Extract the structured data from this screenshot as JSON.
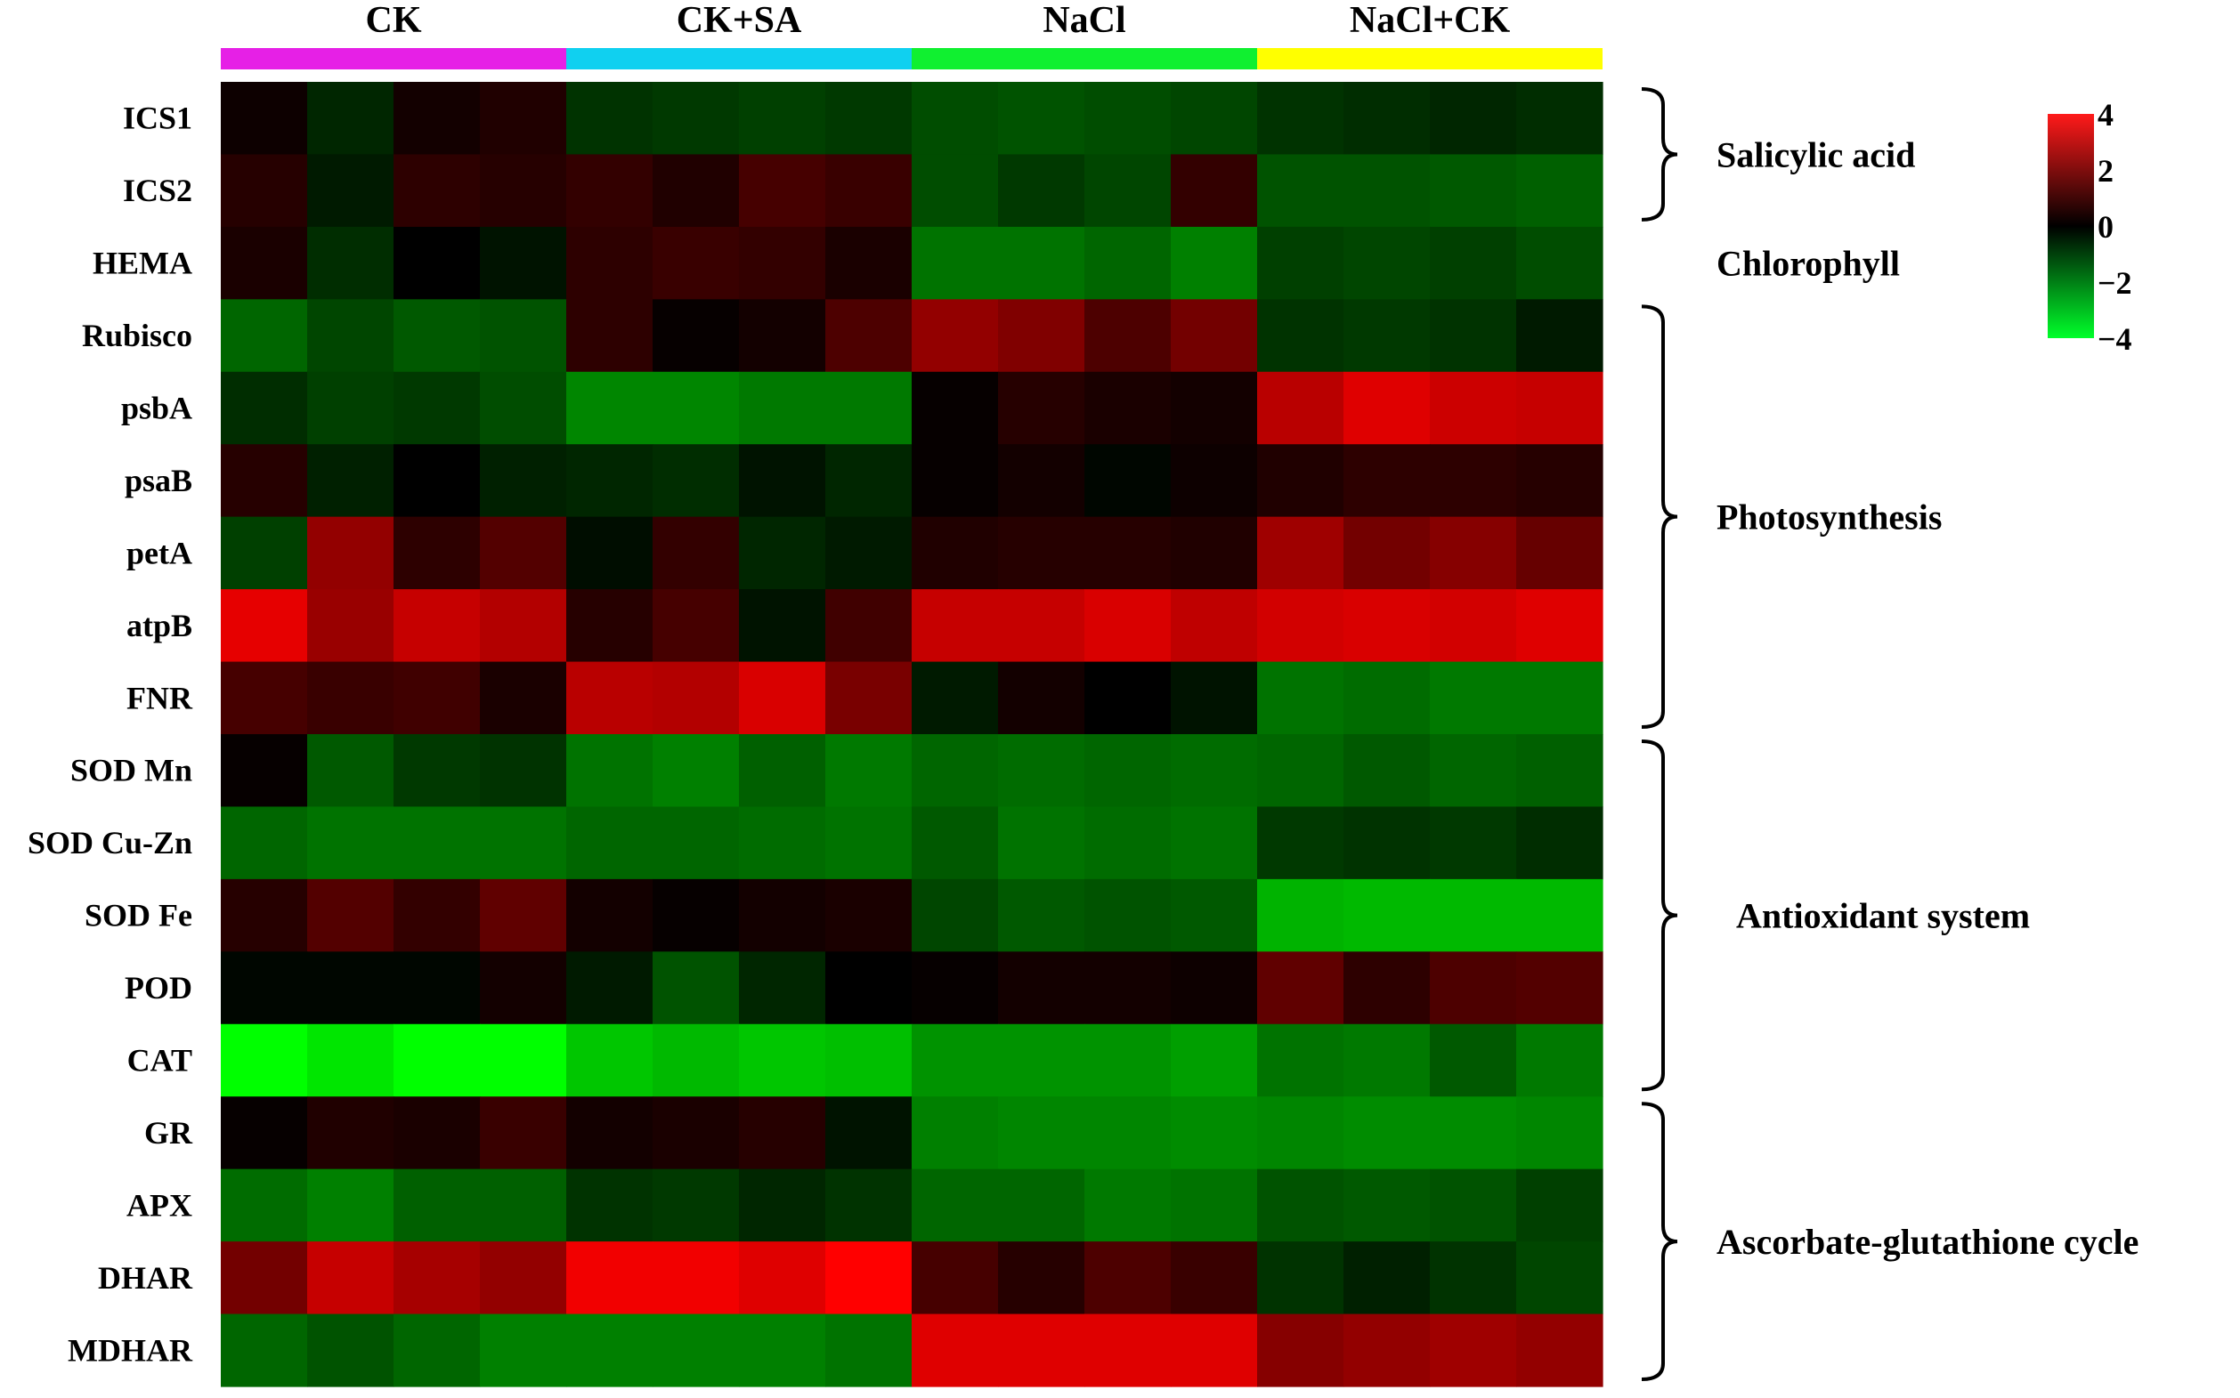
{
  "chart_data": {
    "type": "heatmap",
    "title": "",
    "xlabel": "",
    "ylabel": "",
    "groups": [
      {
        "name": "CK",
        "color": "#e620e6"
      },
      {
        "name": "CK+SA",
        "color": "#10d0f0"
      },
      {
        "name": "NaCl",
        "color": "#10f030"
      },
      {
        "name": "NaCl+CK",
        "color": "#ffff00"
      }
    ],
    "columns_per_group": 4,
    "rows": [
      "ICS1",
      "ICS2",
      "HEMA",
      "Rubisco",
      "psbA",
      "psaB",
      "petA",
      "atpB",
      "FNR",
      "SOD Mn",
      "SOD Cu-Zn",
      "SOD Fe",
      "POD",
      "CAT",
      "GR",
      "APX",
      "DHAR",
      "MDHAR"
    ],
    "values": [
      [
        0.2,
        -0.6,
        0.3,
        0.5,
        -0.8,
        -0.9,
        -1.0,
        -0.9,
        -1.2,
        -1.3,
        -1.2,
        -1.1,
        -0.8,
        -0.7,
        -0.6,
        -0.7
      ],
      [
        0.6,
        -0.4,
        0.7,
        0.6,
        0.8,
        0.5,
        1.1,
        0.9,
        -1.2,
        -0.9,
        -1.1,
        0.8,
        -1.3,
        -1.3,
        -1.4,
        -1.5
      ],
      [
        0.4,
        -0.7,
        0.0,
        -0.3,
        0.7,
        0.9,
        0.8,
        0.4,
        -1.8,
        -1.8,
        -1.6,
        -2.0,
        -1.0,
        -1.1,
        -1.0,
        -1.2
      ],
      [
        -1.6,
        -1.1,
        -1.4,
        -1.3,
        0.7,
        0.1,
        0.3,
        1.2,
        2.3,
        2.0,
        1.2,
        1.8,
        -0.8,
        -0.9,
        -0.8,
        -0.4
      ],
      [
        -0.7,
        -1.0,
        -0.9,
        -1.2,
        -2.1,
        -2.1,
        -1.9,
        -1.9,
        0.1,
        0.6,
        0.4,
        0.3,
        2.9,
        3.5,
        3.2,
        3.1
      ],
      [
        0.6,
        -0.5,
        0.0,
        -0.5,
        -0.6,
        -0.7,
        -0.3,
        -0.6,
        0.1,
        0.3,
        -0.1,
        0.2,
        0.5,
        0.7,
        0.7,
        0.6
      ],
      [
        -1.0,
        2.3,
        0.7,
        1.3,
        -0.2,
        0.8,
        -0.6,
        -0.4,
        0.5,
        0.6,
        0.6,
        0.5,
        2.5,
        1.8,
        2.1,
        1.6
      ],
      [
        3.6,
        2.4,
        3.1,
        2.8,
        0.6,
        1.1,
        -0.3,
        1.0,
        3.1,
        3.1,
        3.4,
        3.0,
        3.3,
        3.4,
        3.3,
        3.5
      ],
      [
        1.1,
        0.9,
        1.0,
        0.4,
        2.9,
        2.8,
        3.4,
        1.9,
        -0.4,
        0.3,
        0.0,
        -0.3,
        -1.8,
        -1.7,
        -1.9,
        -1.9
      ],
      [
        0.1,
        -1.4,
        -0.9,
        -0.8,
        -1.8,
        -2.0,
        -1.5,
        -1.9,
        -1.6,
        -1.7,
        -1.6,
        -1.7,
        -1.6,
        -1.4,
        -1.6,
        -1.5
      ],
      [
        -1.6,
        -1.8,
        -1.8,
        -1.8,
        -1.6,
        -1.6,
        -1.7,
        -1.8,
        -1.4,
        -1.8,
        -1.7,
        -1.8,
        -0.9,
        -0.8,
        -0.9,
        -0.7
      ],
      [
        0.6,
        1.3,
        0.8,
        1.5,
        0.3,
        0.1,
        0.3,
        0.4,
        -1.1,
        -1.4,
        -1.3,
        -1.4,
        -2.8,
        -2.9,
        -2.9,
        -2.9
      ],
      [
        -0.1,
        -0.1,
        -0.1,
        0.3,
        -0.4,
        -1.3,
        -0.6,
        0.0,
        0.1,
        0.3,
        0.3,
        0.2,
        1.5,
        0.7,
        1.2,
        1.3
      ],
      [
        -4.0,
        -3.6,
        -4.2,
        -4.1,
        -3.1,
        -2.9,
        -3.1,
        -3.0,
        -2.3,
        -2.3,
        -2.3,
        -2.5,
        -1.8,
        -1.9,
        -1.4,
        -1.9
      ],
      [
        0.1,
        0.5,
        0.4,
        0.9,
        0.3,
        0.4,
        0.6,
        -0.3,
        -2.0,
        -2.1,
        -2.1,
        -2.2,
        -2.1,
        -2.2,
        -2.2,
        -2.1
      ],
      [
        -1.7,
        -2.0,
        -1.5,
        -1.5,
        -0.8,
        -0.9,
        -0.6,
        -0.8,
        -1.6,
        -1.6,
        -1.9,
        -1.8,
        -1.3,
        -1.4,
        -1.3,
        -1.0
      ],
      [
        1.8,
        3.1,
        2.6,
        2.3,
        3.8,
        3.8,
        3.5,
        4.0,
        1.1,
        0.6,
        1.2,
        0.9,
        -0.8,
        -0.5,
        -0.8,
        -1.1
      ],
      [
        -1.6,
        -1.3,
        -1.6,
        -2.0,
        -2.0,
        -2.0,
        -2.0,
        -1.8,
        3.5,
        3.5,
        3.5,
        3.5,
        2.1,
        2.3,
        2.5,
        2.3
      ]
    ],
    "color_scale": {
      "min": -4,
      "max": 4,
      "low_color": "#00ff00",
      "mid_color": "#000000",
      "high_color": "#ff0000"
    },
    "colorbar_ticks": [
      "4",
      "2",
      "0",
      "−2",
      "−4"
    ],
    "categories": [
      {
        "label": "Salicylic acid",
        "rows": [
          0,
          1
        ],
        "bracket": true
      },
      {
        "label": "Chlorophyll",
        "rows": [
          2,
          2
        ],
        "bracket": false
      },
      {
        "label": "Photosynthesis",
        "rows": [
          3,
          8
        ],
        "bracket": true
      },
      {
        "label": "Antioxidant system",
        "rows": [
          9,
          13
        ],
        "bracket": true
      },
      {
        "label": "Ascorbate-glutathione cycle",
        "rows": [
          14,
          17
        ],
        "bracket": true
      }
    ]
  }
}
